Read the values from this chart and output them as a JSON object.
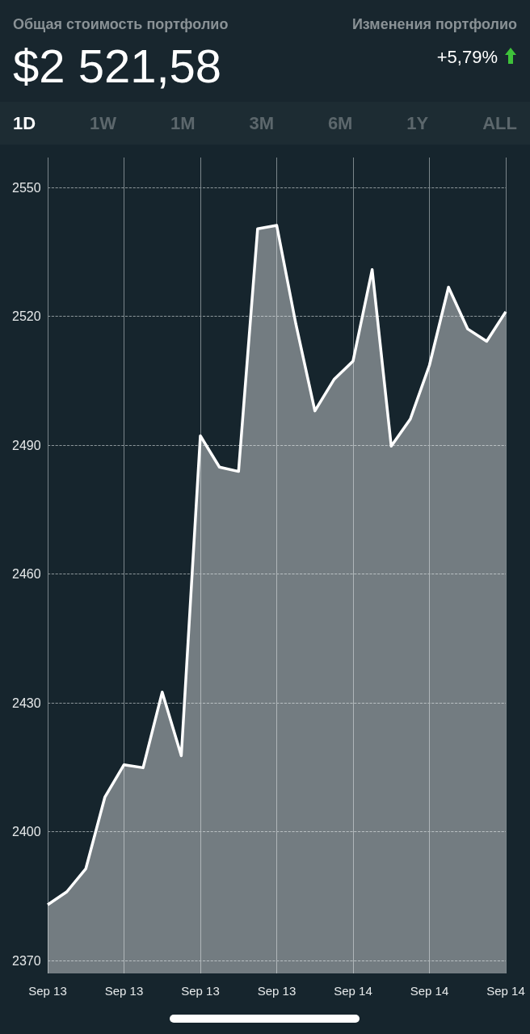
{
  "chart_data": {
    "type": "area",
    "title": "Общая стоимость портфолио",
    "subtitle": "$2 521,58",
    "annotations": [
      "Изменения портфолио",
      "+5,79%",
      "1D",
      "1W",
      "1M",
      "3M",
      "6M",
      "1Y",
      "ALL"
    ],
    "categories": [
      "Sep 13",
      null,
      null,
      null,
      "Sep 13",
      null,
      null,
      null,
      "Sep 13",
      null,
      null,
      null,
      "Sep 13",
      null,
      null,
      null,
      "Sep 14",
      null,
      null,
      null,
      "Sep 14",
      null,
      null,
      null,
      "Sep 14"
    ],
    "series": [
      {
        "color": "#ffffff",
        "values": [
          2383.0,
          2386.0,
          2391.4,
          2408.1,
          2415.6,
          2414.9,
          2432.5,
          2417.7,
          2492.2,
          2484.9,
          2483.9,
          2540.4,
          2541.2,
          2518.3,
          2498.0,
          2505.3,
          2509.6,
          2530.9,
          2489.8,
          2496.1,
          2508.6,
          2526.8,
          2517.1,
          2514.2,
          2521.1
        ]
      }
    ],
    "ylim": [
      2367,
      2557
    ],
    "yticks": [
      2370,
      2400,
      2430,
      2460,
      2490,
      2520,
      2550
    ],
    "grid": true,
    "marker": "none",
    "line_style": "solid"
  }
}
